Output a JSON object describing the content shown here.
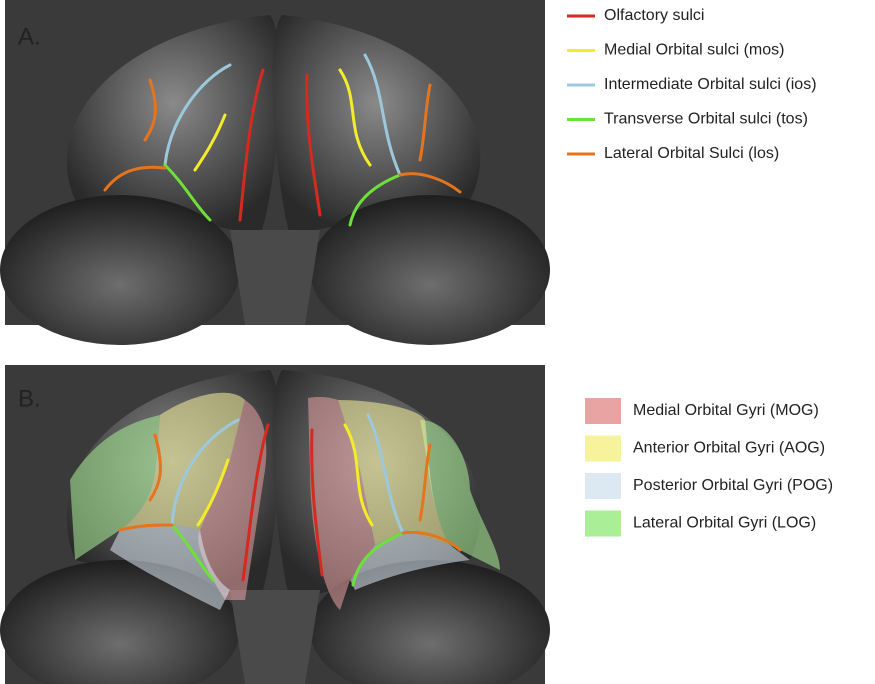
{
  "panel_a": {
    "label": "A.",
    "legend": [
      {
        "text": "Olfactory sulci",
        "color": "#d42a20"
      },
      {
        "text": "Medial Orbital sulci (mos)",
        "color": "#f2ec2a"
      },
      {
        "text": "Intermediate Orbital sulci (ios)",
        "color": "#9cc8dc"
      },
      {
        "text": "Transverse Orbital sulci (tos)",
        "color": "#6ee03a"
      },
      {
        "text": "Lateral Orbital Sulci (los)",
        "color": "#e4741e"
      }
    ]
  },
  "panel_b": {
    "label": "B.",
    "legend": [
      {
        "text": "Medial Orbital Gyri (MOG)",
        "color": "#e8a3a3"
      },
      {
        "text": "Anterior Orbital Gyri (AOG)",
        "color": "#f6f39c"
      },
      {
        "text": "Posterior Orbital Gyri (POG)",
        "color": "#dde9f2"
      },
      {
        "text": "Lateral Orbital Gyri (LOG)",
        "color": "#aaee98"
      }
    ]
  }
}
